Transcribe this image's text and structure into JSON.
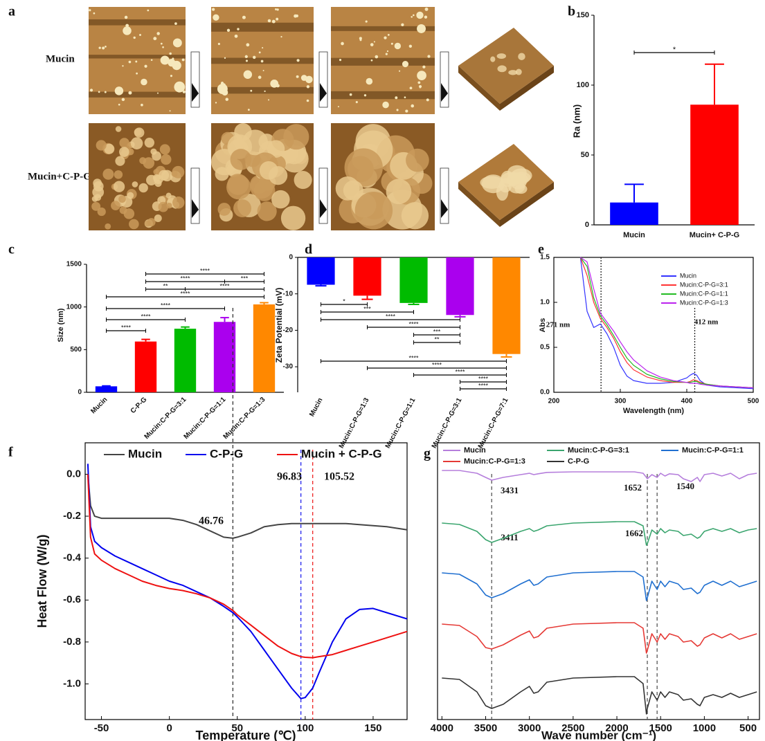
{
  "panel_a": {
    "label": "a",
    "rows": [
      "Mucin",
      "Mucin+C-P-G"
    ]
  },
  "chart_data": [
    {
      "type": "bar",
      "label": "b",
      "ylabel": "Ra (nm)",
      "categories": [
        "Mucin",
        "Mucin+ C-P-G"
      ],
      "values": [
        16,
        86
      ],
      "errors": [
        13,
        29
      ],
      "colors": [
        "#0000ff",
        "#ff0000"
      ],
      "ylim": [
        0,
        150
      ],
      "yticks": [
        0,
        50,
        100,
        150
      ],
      "brackets": [
        [
          {
            "from": 0,
            "to": 1,
            "label": "*"
          }
        ]
      ]
    },
    {
      "type": "bar",
      "label": "c",
      "ylabel": "Size (nm)",
      "categories": [
        "Mucin",
        "C-P-G",
        "Mucin:C-P-G=3:1",
        "Mucin:C-P-G=1:1",
        "Mucin:C-P-G=1:3"
      ],
      "values": [
        70,
        595,
        745,
        825,
        1030
      ],
      "errors": [
        5,
        25,
        20,
        50,
        20
      ],
      "colors": [
        "#0000ff",
        "#ff0000",
        "#00bb00",
        "#aa00ee",
        "#ff8800"
      ],
      "ylim": [
        0,
        1500
      ],
      "yticks": [
        0,
        500,
        1000,
        1500
      ],
      "brackets": [
        [
          {
            "from": 1,
            "to": 4,
            "label": "****"
          }
        ],
        [
          {
            "from": 1,
            "to": 3,
            "label": "****"
          },
          {
            "from": 3,
            "to": 4,
            "label": "***"
          }
        ],
        [
          {
            "from": 1,
            "to": 2,
            "label": "**"
          },
          {
            "from": 2,
            "to": 4,
            "label": "****"
          }
        ],
        [
          {
            "from": 0,
            "to": 4,
            "label": "****"
          }
        ],
        [
          {
            "from": 0,
            "to": 3,
            "label": "****"
          }
        ],
        [
          {
            "from": 0,
            "to": 2,
            "label": "****"
          }
        ],
        [
          {
            "from": 0,
            "to": 1,
            "label": "****"
          }
        ]
      ]
    },
    {
      "type": "bar",
      "label": "d",
      "ylabel": "Zeta Potential (mV)",
      "categories": [
        "Mucin",
        "Mucin:C-P-G=1:3",
        "Mucin:C-P-G=1:1",
        "Mucin:C-P-G=3:1",
        "Mucin:C-P-G=7:1"
      ],
      "values": [
        -7.5,
        -10.5,
        -12.5,
        -15.8,
        -26.5
      ],
      "errors": [
        0.3,
        1,
        0.4,
        0.5,
        0.8
      ],
      "colors": [
        "#0000ff",
        "#ff0000",
        "#00bb00",
        "#aa00ee",
        "#ff8800"
      ],
      "ylim": [
        -37,
        0
      ],
      "yticks": [
        0,
        -10,
        -20,
        -30
      ],
      "brackets": [
        [
          {
            "from": 0,
            "to": 1,
            "label": "*"
          }
        ],
        [
          {
            "from": 0,
            "to": 2,
            "label": "***"
          }
        ],
        [
          {
            "from": 0,
            "to": 3,
            "label": "****"
          }
        ],
        [
          {
            "from": 1,
            "to": 3,
            "label": "****"
          }
        ],
        [
          {
            "from": 2,
            "to": 3,
            "label": "***"
          }
        ],
        [
          {
            "from": 2,
            "to": 3,
            "label": "**"
          }
        ],
        [
          {
            "from": 0,
            "to": 4,
            "label": "****"
          }
        ],
        [
          {
            "from": 1,
            "to": 4,
            "label": "****"
          }
        ],
        [
          {
            "from": 2,
            "to": 4,
            "label": "****"
          }
        ],
        [
          {
            "from": 3,
            "to": 4,
            "label": "****"
          }
        ],
        [
          {
            "from": 3,
            "to": 4,
            "label": "****"
          }
        ]
      ]
    },
    {
      "type": "line",
      "label": "e",
      "xlabel": "Wavelength (nm)",
      "ylabel": "Abs",
      "x": [
        240,
        250,
        260,
        270,
        280,
        290,
        300,
        310,
        320,
        340,
        360,
        380,
        400,
        405,
        410,
        415,
        420,
        430,
        450,
        500
      ],
      "series": [
        {
          "name": "Mucin",
          "color": "#3333ff",
          "values": [
            1.5,
            0.9,
            0.72,
            0.76,
            0.65,
            0.5,
            0.3,
            0.18,
            0.13,
            0.1,
            0.1,
            0.11,
            0.16,
            0.19,
            0.21,
            0.19,
            0.13,
            0.08,
            0.06,
            0.04
          ]
        },
        {
          "name": "Mucin:C-P-G=3:1",
          "color": "#ff3333",
          "values": [
            1.5,
            1.3,
            1.0,
            0.82,
            0.72,
            0.6,
            0.45,
            0.33,
            0.25,
            0.17,
            0.13,
            0.11,
            0.11,
            0.12,
            0.14,
            0.13,
            0.11,
            0.09,
            0.07,
            0.05
          ]
        },
        {
          "name": "Mucin:C-P-G=1:1",
          "color": "#22bb22",
          "values": [
            1.5,
            1.4,
            1.05,
            0.85,
            0.75,
            0.63,
            0.5,
            0.38,
            0.3,
            0.2,
            0.15,
            0.12,
            0.11,
            0.11,
            0.12,
            0.12,
            0.1,
            0.09,
            0.07,
            0.05
          ]
        },
        {
          "name": "Mucin:C-P-G=1:3",
          "color": "#bb22ee",
          "values": [
            1.5,
            1.45,
            1.15,
            0.88,
            0.78,
            0.68,
            0.56,
            0.45,
            0.36,
            0.24,
            0.17,
            0.13,
            0.11,
            0.1,
            0.1,
            0.1,
            0.09,
            0.08,
            0.07,
            0.05
          ]
        }
      ],
      "xlim": [
        200,
        500
      ],
      "ylim": [
        0,
        1.5
      ],
      "xticks": [
        200,
        300,
        400,
        500
      ],
      "yticks": [
        {
          "value": 0,
          "label": "0.0"
        },
        0.5,
        {
          "value": 1,
          "label": "1.0"
        },
        1.5
      ],
      "annotations": [
        {
          "value": 271,
          "label": "271 nm",
          "color": "#222222",
          "line": true
        },
        {
          "value": 412,
          "label": "412 nm",
          "color": "#222222",
          "line": true
        }
      ]
    },
    {
      "type": "line",
      "label": "f",
      "xlabel": "Temperature (℃)",
      "ylabel": "Heat Flow (W/g)",
      "x": [
        -60,
        -58,
        -55,
        -50,
        -40,
        -30,
        -20,
        -10,
        0,
        10,
        20,
        30,
        40,
        46.76,
        50,
        60,
        70,
        80,
        90,
        96.83,
        100,
        105.52,
        110,
        120,
        130,
        140,
        150,
        160,
        175
      ],
      "series": [
        {
          "name": "Mucin",
          "color": "#444444",
          "values": [
            0.0,
            -0.15,
            -0.2,
            -0.21,
            -0.21,
            -0.21,
            -0.21,
            -0.21,
            -0.21,
            -0.22,
            -0.24,
            -0.27,
            -0.3,
            -0.305,
            -0.3,
            -0.28,
            -0.25,
            -0.24,
            -0.235,
            -0.235,
            -0.235,
            -0.235,
            -0.235,
            -0.235,
            -0.235,
            -0.24,
            -0.245,
            -0.25,
            -0.265
          ]
        },
        {
          "name": "C-P-G",
          "color": "#0000ee",
          "values": [
            0.05,
            -0.25,
            -0.32,
            -0.35,
            -0.39,
            -0.42,
            -0.45,
            -0.48,
            -0.51,
            -0.53,
            -0.56,
            -0.59,
            -0.63,
            -0.66,
            -0.68,
            -0.75,
            -0.84,
            -0.93,
            -1.02,
            -1.07,
            -1.065,
            -1.02,
            -0.95,
            -0.8,
            -0.69,
            -0.645,
            -0.64,
            -0.66,
            -0.69
          ]
        },
        {
          "name": "Mucin + C-P-G",
          "color": "#ee1111",
          "values": [
            0.0,
            -0.3,
            -0.38,
            -0.41,
            -0.45,
            -0.48,
            -0.51,
            -0.53,
            -0.545,
            -0.555,
            -0.57,
            -0.59,
            -0.62,
            -0.65,
            -0.67,
            -0.72,
            -0.77,
            -0.82,
            -0.855,
            -0.87,
            -0.873,
            -0.875,
            -0.87,
            -0.86,
            -0.84,
            -0.82,
            -0.8,
            -0.78,
            -0.75
          ]
        }
      ],
      "xlim": [
        -62,
        175
      ],
      "ylim": [
        -1.17,
        0.15
      ],
      "xticks": [
        -50,
        0,
        50,
        100,
        150
      ],
      "yticks": [
        {
          "value": 0,
          "label": "0.0"
        },
        {
          "value": -0.2,
          "label": "-0.2"
        },
        {
          "value": -0.4,
          "label": "-0.4"
        },
        {
          "value": -0.6,
          "label": "-0.6"
        },
        {
          "value": -0.8,
          "label": "-0.8"
        },
        {
          "value": -1,
          "label": "-1.0"
        }
      ],
      "annotations": [
        {
          "value": 46.76,
          "color": "#333333",
          "line": true
        },
        {
          "value": 96.83,
          "color": "#2222ee",
          "line": true
        },
        {
          "value": 105.52,
          "color": "#ee2222",
          "line": true
        }
      ]
    },
    {
      "type": "line",
      "label": "g",
      "xlabel": "Wave number (cm⁻¹)",
      "x": [
        4000,
        3800,
        3600,
        3500,
        3431,
        3300,
        3100,
        3000,
        2950,
        2900,
        2800,
        2500,
        2000,
        1800,
        1700,
        1662,
        1652,
        1600,
        1540,
        1500,
        1450,
        1400,
        1300,
        1240,
        1150,
        1080,
        1050,
        1000,
        900,
        800,
        700,
        600,
        500,
        400
      ],
      "series": [
        {
          "name": "Mucin",
          "color": "#b57edc",
          "values": [
            0.9,
            0.9,
            0.89,
            0.875,
            0.865,
            0.875,
            0.885,
            0.89,
            0.885,
            0.888,
            0.893,
            0.895,
            0.895,
            0.895,
            0.89,
            0.875,
            0.87,
            0.885,
            0.875,
            0.89,
            0.88,
            0.888,
            0.885,
            0.87,
            0.86,
            0.875,
            0.86,
            0.885,
            0.89,
            0.88,
            0.89,
            0.87,
            0.885,
            0.89
          ]
        },
        {
          "name": "Mucin:C-P-G=3:1",
          "color": "#3aa56e",
          "values": [
            0.71,
            0.705,
            0.68,
            0.65,
            0.64,
            0.655,
            0.68,
            0.69,
            0.68,
            0.685,
            0.7,
            0.71,
            0.715,
            0.715,
            0.7,
            0.63,
            0.635,
            0.685,
            0.67,
            0.69,
            0.675,
            0.685,
            0.68,
            0.665,
            0.67,
            0.655,
            0.66,
            0.68,
            0.69,
            0.68,
            0.69,
            0.675,
            0.685,
            0.69
          ]
        },
        {
          "name": "Mucin:C-P-G=1:1",
          "color": "#1f6fd0",
          "values": [
            0.53,
            0.525,
            0.49,
            0.45,
            0.44,
            0.455,
            0.49,
            0.505,
            0.485,
            0.49,
            0.515,
            0.53,
            0.535,
            0.535,
            0.515,
            0.43,
            0.44,
            0.5,
            0.47,
            0.5,
            0.48,
            0.5,
            0.49,
            0.47,
            0.475,
            0.455,
            0.46,
            0.485,
            0.5,
            0.485,
            0.5,
            0.48,
            0.49,
            0.5
          ]
        },
        {
          "name": "Mucin:C-P-G=1:3",
          "color": "#e53935",
          "values": [
            0.345,
            0.34,
            0.3,
            0.26,
            0.255,
            0.27,
            0.305,
            0.32,
            0.295,
            0.3,
            0.33,
            0.345,
            0.35,
            0.35,
            0.33,
            0.24,
            0.25,
            0.31,
            0.28,
            0.31,
            0.29,
            0.31,
            0.3,
            0.28,
            0.285,
            0.265,
            0.27,
            0.295,
            0.31,
            0.295,
            0.31,
            0.29,
            0.3,
            0.31
          ]
        },
        {
          "name": "C-P-G",
          "color": "#333333",
          "values": [
            0.15,
            0.145,
            0.1,
            0.05,
            0.04,
            0.055,
            0.1,
            0.12,
            0.095,
            0.1,
            0.135,
            0.15,
            0.155,
            0.155,
            0.13,
            0.02,
            0.04,
            0.1,
            0.07,
            0.1,
            0.08,
            0.1,
            0.09,
            0.07,
            0.075,
            0.055,
            0.05,
            0.08,
            0.09,
            0.08,
            0.095,
            0.08,
            0.09,
            0.1
          ]
        }
      ],
      "xlim": [
        4050,
        370
      ],
      "ylim": [
        0,
        1
      ],
      "xticks": [
        4000,
        3500,
        3000,
        2500,
        2000,
        1500,
        1000,
        500
      ],
      "annotations": [
        {
          "value": 3431,
          "color": "#cc0000",
          "line": true
        },
        {
          "value": 3411,
          "color": "#cc0000"
        },
        {
          "value": 1652,
          "color": "#cc0000",
          "line": true
        },
        {
          "value": 1662,
          "color": "#cc0000"
        },
        {
          "value": 1540,
          "color": "#cc0000",
          "line": true
        }
      ]
    }
  ]
}
